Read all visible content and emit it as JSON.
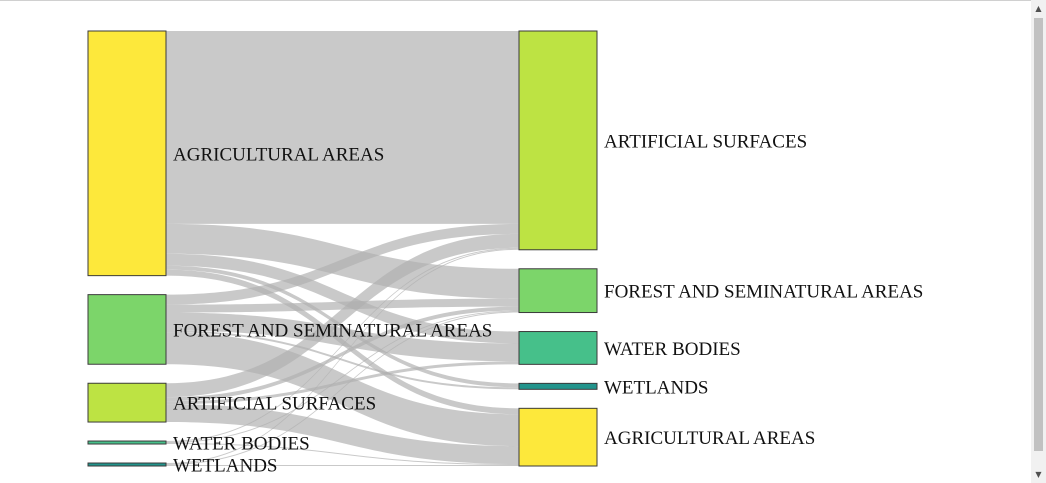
{
  "diagram": {
    "type": "sankey",
    "source_nodes": [
      {
        "id": "s_agri",
        "label": "AGRICULTURAL AREAS",
        "color": "#fde83b"
      },
      {
        "id": "s_forest",
        "label": "FOREST AND SEMINATURAL AREAS",
        "color": "#7cd56a"
      },
      {
        "id": "s_art",
        "label": "ARTIFICIAL SURFACES",
        "color": "#bde343"
      },
      {
        "id": "s_water",
        "label": "WATER BODIES",
        "color": "#46c08a"
      },
      {
        "id": "s_wet",
        "label": "WETLANDS",
        "color": "#22948c"
      }
    ],
    "target_nodes": [
      {
        "id": "t_art",
        "label": "ARTIFICIAL SURFACES",
        "color": "#bde343"
      },
      {
        "id": "t_forest",
        "label": "FOREST AND SEMINATURAL AREAS",
        "color": "#7cd56a"
      },
      {
        "id": "t_water",
        "label": "WATER BODIES",
        "color": "#46c08a"
      },
      {
        "id": "t_wet",
        "label": "WETLANDS",
        "color": "#22948c"
      },
      {
        "id": "t_agri",
        "label": "AGRICULTURAL AREAS",
        "color": "#fde83b"
      }
    ],
    "links": [
      {
        "source": "s_agri",
        "target": "t_art",
        "value": 194
      },
      {
        "source": "s_agri",
        "target": "t_forest",
        "value": 30
      },
      {
        "source": "s_agri",
        "target": "t_water",
        "value": 12
      },
      {
        "source": "s_agri",
        "target": "t_wet",
        "value": 4
      },
      {
        "source": "s_agri",
        "target": "t_agri",
        "value": 6
      },
      {
        "source": "s_forest",
        "target": "t_art",
        "value": 10
      },
      {
        "source": "s_forest",
        "target": "t_forest",
        "value": 8
      },
      {
        "source": "s_forest",
        "target": "t_water",
        "value": 18
      },
      {
        "source": "s_forest",
        "target": "t_wet",
        "value": 2
      },
      {
        "source": "s_forest",
        "target": "t_agri",
        "value": 32
      },
      {
        "source": "s_art",
        "target": "t_art",
        "value": 14
      },
      {
        "source": "s_art",
        "target": "t_forest",
        "value": 4
      },
      {
        "source": "s_art",
        "target": "t_water",
        "value": 3
      },
      {
        "source": "s_art",
        "target": "t_agri",
        "value": 18
      },
      {
        "source": "s_water",
        "target": "t_art",
        "value": 1
      },
      {
        "source": "s_water",
        "target": "t_forest",
        "value": 1
      },
      {
        "source": "s_water",
        "target": "t_agri",
        "value": 1
      },
      {
        "source": "s_wet",
        "target": "t_art",
        "value": 1
      },
      {
        "source": "s_wet",
        "target": "t_forest",
        "value": 1
      },
      {
        "source": "s_wet",
        "target": "t_agri",
        "value": 1
      }
    ],
    "link_color": "#b0b0b0",
    "node_stroke": "#3a3a3a"
  }
}
